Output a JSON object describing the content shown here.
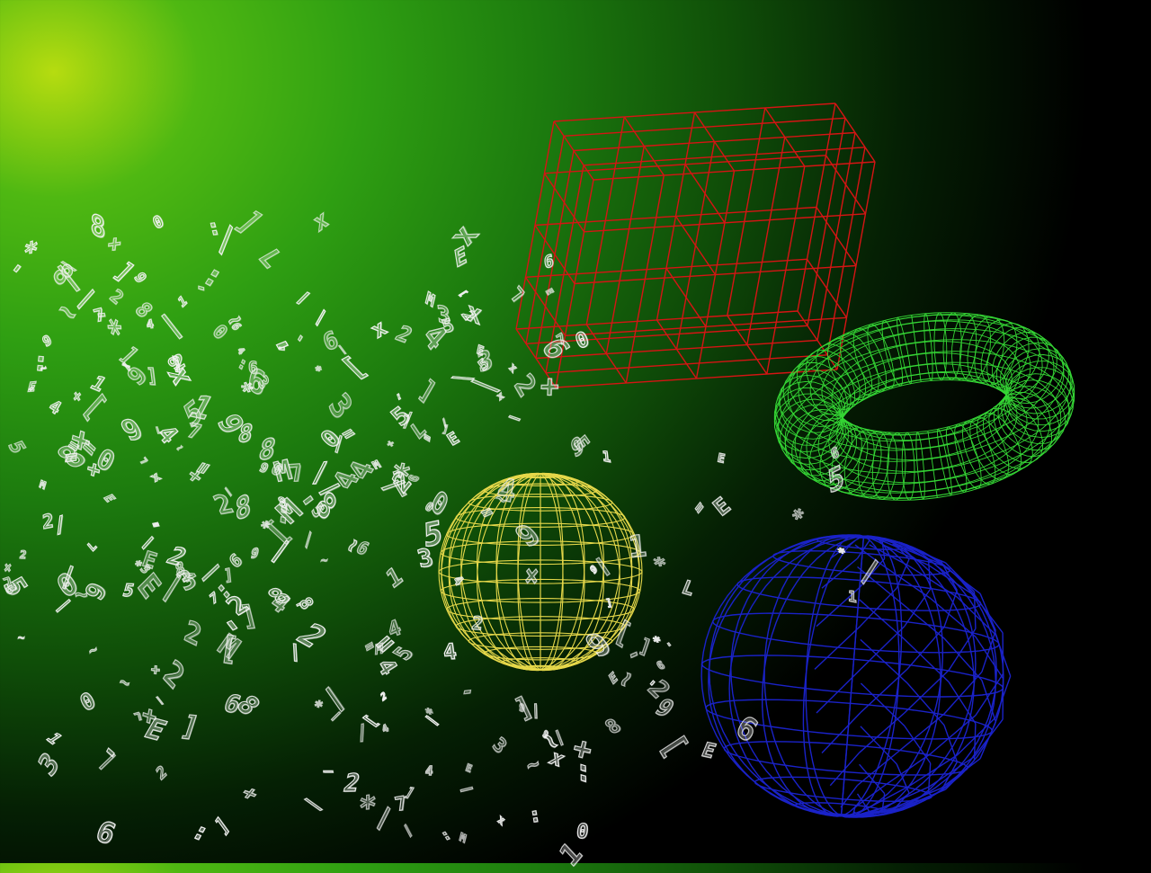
{
  "scene": {
    "background_colors": {
      "glow": "#b6dc10",
      "mid": "#2f9f12",
      "edge": "#000000"
    },
    "objects": [
      {
        "name": "wireframe-cube",
        "color": "#d61414"
      },
      {
        "name": "wireframe-torus",
        "color": "#35d635"
      },
      {
        "name": "wireframe-sphere-yellow",
        "color": "#e6d84a"
      },
      {
        "name": "wireframe-sphere-blue",
        "color": "#1a22c8"
      }
    ],
    "glyph_color": "#f2f2f2",
    "glyph_charset": [
      "2",
      "5",
      "7",
      "8",
      "3",
      "4",
      "6",
      "9",
      "0",
      "1",
      "E",
      "L",
      "M",
      "=",
      "+",
      "x",
      "*",
      "-",
      "_",
      "/",
      "\\",
      ":",
      "[",
      "]",
      "|",
      "~"
    ]
  }
}
